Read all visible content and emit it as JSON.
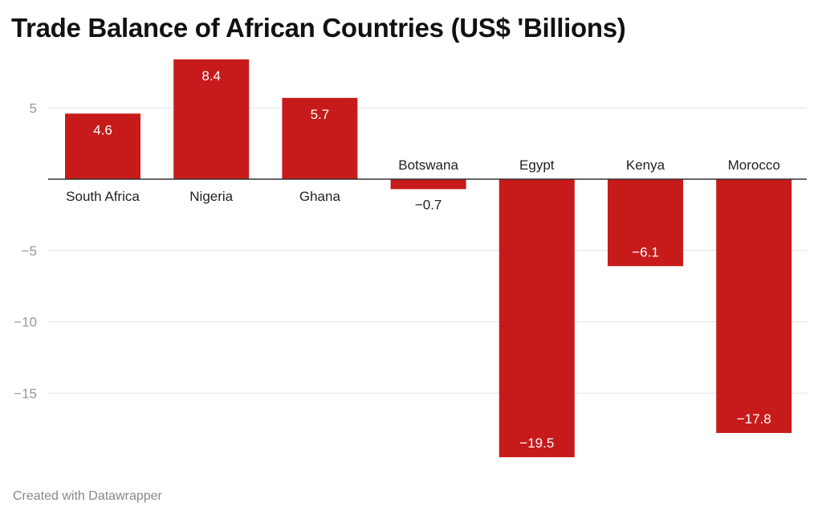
{
  "chart_data": {
    "type": "bar",
    "title": "Trade Balance of African Countries (US$ 'Billions)",
    "categories": [
      "South Africa",
      "Nigeria",
      "Ghana",
      "Botswana",
      "Egypt",
      "Kenya",
      "Morocco"
    ],
    "values": [
      4.6,
      8.4,
      5.7,
      -0.7,
      -19.5,
      -6.1,
      -17.8
    ],
    "value_labels": [
      "4.6",
      "8.4",
      "5.7",
      "−0.7",
      "−19.5",
      "−6.1",
      "−17.8"
    ],
    "ylim": [
      -20,
      8.5
    ],
    "yticks": [
      5,
      -5,
      -10,
      -15
    ],
    "ytick_labels": [
      "5",
      "−5",
      "−10",
      "−15"
    ],
    "grid": true,
    "bar_color": "#c71b1b"
  },
  "footer": "Created with Datawrapper"
}
